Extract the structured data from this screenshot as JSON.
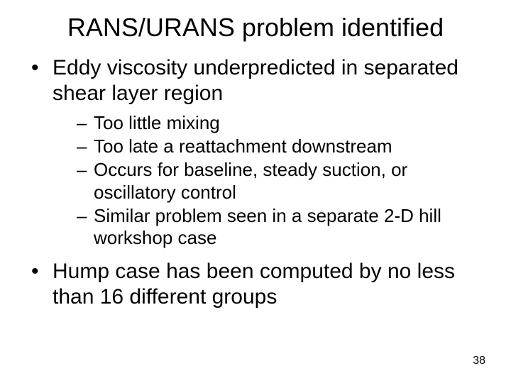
{
  "title": "RANS/URANS problem identified",
  "bullets": [
    {
      "text": "Eddy viscosity underpredicted in separated shear layer region",
      "sub": [
        "Too little mixing",
        "Too late a reattachment downstream",
        "Occurs for baseline, steady suction, or oscillatory control",
        "Similar problem seen in a separate 2-D hill workshop case"
      ]
    },
    {
      "text": "Hump case has been computed by no less than 16 different groups",
      "sub": []
    }
  ],
  "page_number": "38",
  "style": {
    "background_color": "#ffffff",
    "text_color": "#000000",
    "title_fontsize": 36,
    "level1_fontsize": 30,
    "level2_fontsize": 26,
    "pagenum_fontsize": 16,
    "font_family": "Arial"
  }
}
